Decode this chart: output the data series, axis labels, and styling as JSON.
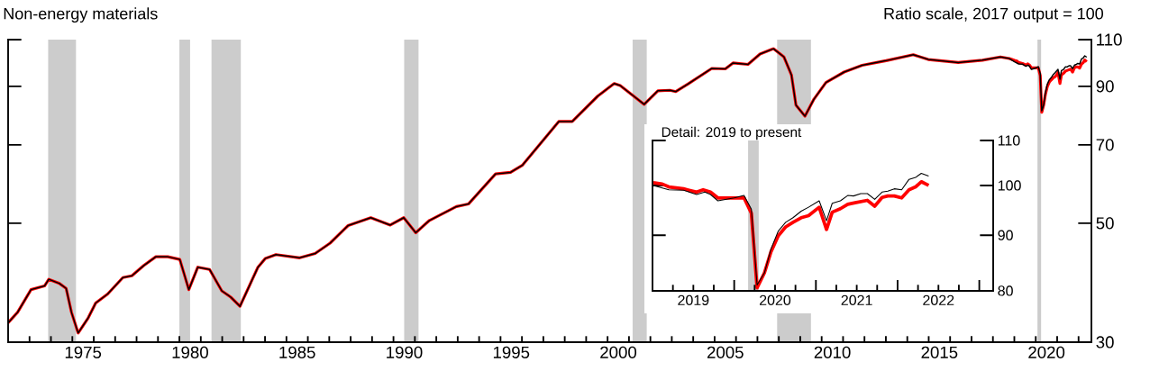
{
  "chart_data": [
    {
      "type": "line",
      "title": "Non-energy materials",
      "ylabel": "Ratio scale, 2017 output = 100",
      "xlim": [
        1972,
        2022.6
      ],
      "ylim": [
        30,
        110
      ],
      "log": "y",
      "yticks": [
        30,
        50,
        70,
        90,
        110
      ],
      "xticks": [
        {
          "value": 1975.5,
          "label": "1975"
        },
        {
          "value": 1980.5,
          "label": "1980"
        },
        {
          "value": 1985.5,
          "label": "1985"
        },
        {
          "value": 1990.5,
          "label": "1990"
        },
        {
          "value": 1995.5,
          "label": "1995"
        },
        {
          "value": 2000.5,
          "label": "2000"
        },
        {
          "value": 2005.5,
          "label": "2005"
        },
        {
          "value": 2010.5,
          "label": "2010"
        },
        {
          "value": 2015.5,
          "label": "2015"
        },
        {
          "value": 2020.5,
          "label": "2020"
        },
        {
          "value": 1973,
          "label": null
        },
        {
          "value": 1974,
          "label": null
        },
        {
          "value": 1975,
          "label": null
        },
        {
          "value": 1976,
          "label": null
        },
        {
          "value": 1977,
          "label": null
        },
        {
          "value": 1978,
          "label": null
        },
        {
          "value": 1979,
          "label": null
        },
        {
          "value": 1980,
          "label": null
        },
        {
          "value": 1981,
          "label": null
        },
        {
          "value": 1982,
          "label": null
        },
        {
          "value": 1983,
          "label": null
        },
        {
          "value": 1984,
          "label": null
        },
        {
          "value": 1985,
          "label": null
        },
        {
          "value": 1986,
          "label": null
        },
        {
          "value": 1987,
          "label": null
        },
        {
          "value": 1988,
          "label": null
        },
        {
          "value": 1989,
          "label": null
        },
        {
          "value": 1990,
          "label": null
        },
        {
          "value": 1991,
          "label": null
        },
        {
          "value": 1992,
          "label": null
        },
        {
          "value": 1993,
          "label": null
        },
        {
          "value": 1994,
          "label": null
        },
        {
          "value": 1995,
          "label": null
        },
        {
          "value": 1996,
          "label": null
        },
        {
          "value": 1997,
          "label": null
        },
        {
          "value": 1998,
          "label": null
        },
        {
          "value": 1999,
          "label": null
        },
        {
          "value": 2000,
          "label": null
        },
        {
          "value": 2001,
          "label": null
        },
        {
          "value": 2002,
          "label": null
        },
        {
          "value": 2003,
          "label": null
        },
        {
          "value": 2004,
          "label": null
        },
        {
          "value": 2005,
          "label": null
        },
        {
          "value": 2006,
          "label": null
        },
        {
          "value": 2007,
          "label": null
        },
        {
          "value": 2008,
          "label": null
        },
        {
          "value": 2009,
          "label": null
        },
        {
          "value": 2010,
          "label": null
        },
        {
          "value": 2011,
          "label": null
        },
        {
          "value": 2012,
          "label": null
        },
        {
          "value": 2013,
          "label": null
        },
        {
          "value": 2014,
          "label": null
        },
        {
          "value": 2015,
          "label": null
        },
        {
          "value": 2016,
          "label": null
        },
        {
          "value": 2017,
          "label": null
        },
        {
          "value": 2018,
          "label": null
        },
        {
          "value": 2019,
          "label": null
        },
        {
          "value": 2020,
          "label": null
        },
        {
          "value": 2021,
          "label": null
        },
        {
          "value": 2022,
          "label": null
        }
      ],
      "bands": [
        {
          "axis": "x",
          "from": 1973.87,
          "to": 1975.17,
          "color": "#cccccc"
        },
        {
          "axis": "x",
          "from": 1980.0,
          "to": 1980.5,
          "color": "#cccccc"
        },
        {
          "axis": "x",
          "from": 1981.5,
          "to": 1982.87,
          "color": "#cccccc"
        },
        {
          "axis": "x",
          "from": 1990.5,
          "to": 1991.17,
          "color": "#cccccc"
        },
        {
          "axis": "x",
          "from": 2001.17,
          "to": 2001.83,
          "color": "#cccccc"
        },
        {
          "axis": "x",
          "from": 2007.92,
          "to": 2009.5,
          "color": "#cccccc"
        },
        {
          "axis": "x",
          "from": 2020.08,
          "to": 2020.25,
          "color": "#cccccc"
        }
      ],
      "series": [
        {
          "color": "#ff0000",
          "x": [
            1972.0,
            1972.44,
            1973.07,
            1973.7,
            1973.9,
            1974.4,
            1974.71,
            1974.96,
            1975.27,
            1975.74,
            1976.09,
            1976.65,
            1977.36,
            1977.78,
            1978.34,
            1978.9,
            1979.46,
            1980.02,
            1980.44,
            1980.86,
            1981.41,
            1981.98,
            1982.4,
            1982.83,
            1983.67,
            1984.02,
            1984.51,
            1985.62,
            1986.34,
            1987.04,
            1987.88,
            1988.94,
            1989.85,
            1990.48,
            1991.04,
            1991.68,
            1992.94,
            1993.5,
            1994.77,
            1995.47,
            1996.03,
            1997.72,
            1998.35,
            1999.54,
            2000.31,
            2000.59,
            2001.22,
            2001.71,
            2002.35,
            2002.91,
            2003.19,
            2003.75,
            2004.87,
            2005.5,
            2005.86,
            2006.56,
            2007.12,
            2007.75,
            2008.24,
            2008.59,
            2008.8,
            2009.22,
            2009.64,
            2010.2,
            2011.05,
            2011.89,
            2013.01,
            2014.28,
            2014.98,
            2016.38,
            2017.51,
            2018.35,
            2018.77,
            2019.01,
            2019.12,
            2019.2,
            2019.38,
            2019.54,
            2019.62,
            2019.71,
            2019.8,
            2020.0,
            2020.12,
            2020.21,
            2020.28,
            2020.37,
            2020.45,
            2020.54,
            2020.63,
            2020.72,
            2020.82,
            2020.91,
            2021.04,
            2021.13,
            2021.2,
            2021.3,
            2021.39,
            2021.48,
            2021.63,
            2021.72,
            2021.81,
            2021.88,
            2021.96,
            2022.05,
            2022.14,
            2022.22,
            2022.29,
            2022.38
          ],
          "values": [
            32.6,
            34.1,
            37.6,
            38.2,
            39.3,
            38.6,
            37.8,
            34.1,
            31.2,
            33.3,
            35.5,
            36.9,
            39.6,
            39.9,
            41.7,
            43.3,
            43.3,
            42.8,
            37.6,
            41.4,
            41.0,
            37.4,
            36.4,
            35.0,
            41.4,
            43.0,
            43.7,
            43.1,
            43.9,
            45.9,
            49.5,
            51.2,
            49.6,
            51.2,
            48.0,
            50.6,
            53.7,
            54.3,
            61.8,
            62.2,
            64.2,
            77.4,
            77.4,
            86.3,
            91.1,
            90.3,
            86.3,
            83.3,
            88.3,
            88.5,
            88.0,
            90.9,
            97.2,
            97.0,
            99.5,
            98.9,
            103.4,
            105.8,
            102.1,
            94.5,
            83.0,
            79.2,
            85.2,
            91.5,
            95.7,
            98.5,
            100.5,
            103.1,
            101.0,
            99.7,
            100.7,
            102.1,
            101.4,
            100.6,
            100.3,
            99.7,
            99.3,
            98.6,
            99.1,
            98.6,
            97.4,
            97.4,
            97.4,
            94.3,
            80.5,
            83.1,
            86.9,
            89.9,
            91.6,
            92.5,
            93.4,
            93.8,
            95.5,
            91.1,
            94.5,
            95.2,
            96.1,
            96.4,
            96.9,
            95.7,
            97.5,
            97.8,
            97.8,
            97.4,
            99.1,
            99.7,
            100.8,
            100.0
          ]
        },
        {
          "color": "#000000",
          "x": [
            1972.0,
            1972.44,
            1973.07,
            1973.7,
            1973.9,
            1974.4,
            1974.71,
            1974.96,
            1975.27,
            1975.74,
            1976.09,
            1976.65,
            1977.36,
            1977.78,
            1978.34,
            1978.9,
            1979.46,
            1980.02,
            1980.44,
            1980.86,
            1981.41,
            1981.98,
            1982.4,
            1982.83,
            1983.67,
            1984.02,
            1984.51,
            1985.62,
            1986.34,
            1987.04,
            1987.88,
            1988.94,
            1989.85,
            1990.48,
            1991.04,
            1991.68,
            1992.94,
            1993.5,
            1994.77,
            1995.47,
            1996.03,
            1997.72,
            1998.35,
            1999.54,
            2000.31,
            2000.59,
            2001.22,
            2001.71,
            2002.35,
            2002.91,
            2003.19,
            2003.75,
            2004.87,
            2005.5,
            2005.86,
            2006.56,
            2007.12,
            2007.75,
            2008.24,
            2008.59,
            2008.8,
            2009.22,
            2009.64,
            2010.2,
            2011.05,
            2011.89,
            2013.01,
            2014.28,
            2014.98,
            2016.38,
            2017.51,
            2018.35,
            2018.77,
            2019.01,
            2019.2,
            2019.38,
            2019.54,
            2019.64,
            2019.71,
            2019.8,
            2020.0,
            2020.12,
            2020.21,
            2020.28,
            2020.37,
            2020.45,
            2020.54,
            2020.63,
            2020.72,
            2020.82,
            2020.91,
            2021.04,
            2021.13,
            2021.2,
            2021.3,
            2021.39,
            2021.46,
            2021.55,
            2021.63,
            2021.72,
            2021.81,
            2021.88,
            2021.96,
            2022.05,
            2022.14,
            2022.22,
            2022.29,
            2022.38
          ],
          "values": [
            32.6,
            34.1,
            37.6,
            38.2,
            39.3,
            38.6,
            37.8,
            34.1,
            31.2,
            33.3,
            35.5,
            36.9,
            39.6,
            39.9,
            41.7,
            43.3,
            43.3,
            42.8,
            37.6,
            41.4,
            41.0,
            37.4,
            36.4,
            35.0,
            41.4,
            43.0,
            43.7,
            43.1,
            43.9,
            45.9,
            49.5,
            51.2,
            49.6,
            51.2,
            48.0,
            50.6,
            53.7,
            54.3,
            61.8,
            62.2,
            64.2,
            77.4,
            77.4,
            86.3,
            91.1,
            90.3,
            86.3,
            83.3,
            88.3,
            88.5,
            88.0,
            90.9,
            97.2,
            97.0,
            99.5,
            98.9,
            103.4,
            105.8,
            102.1,
            94.5,
            83.0,
            79.2,
            85.2,
            91.5,
            95.7,
            98.5,
            100.5,
            103.1,
            101.0,
            99.7,
            100.7,
            102.1,
            101.4,
            100.0,
            99.1,
            99.0,
            98.1,
            98.6,
            98.1,
            96.8,
            97.4,
            97.9,
            95.1,
            81.0,
            83.1,
            87.4,
            90.8,
            92.5,
            93.4,
            94.7,
            95.5,
            96.8,
            92.8,
            96.3,
            96.8,
            97.9,
            97.8,
            98.3,
            98.3,
            97.1,
            98.6,
            98.8,
            99.3,
            99.1,
            101.3,
            101.7,
            102.6,
            102.0
          ]
        }
      ]
    },
    {
      "type": "line",
      "title": "Detail: 2019 to present",
      "xlim": [
        2019,
        2023.17
      ],
      "ylim": [
        80,
        110
      ],
      "log": "y",
      "yticks": [
        80,
        90,
        100,
        110
      ],
      "xticks": [
        {
          "value": 2019.5,
          "label": "2019"
        },
        {
          "value": 2020.5,
          "label": "2020"
        },
        {
          "value": 2021.5,
          "label": "2021"
        },
        {
          "value": 2022.5,
          "label": "2022"
        },
        {
          "value": 2019.25,
          "label": null
        },
        {
          "value": 2019.5,
          "label": null
        },
        {
          "value": 2019.75,
          "label": null
        },
        {
          "value": 2020,
          "label": null
        },
        {
          "value": 2020.25,
          "label": null
        },
        {
          "value": 2020.5,
          "label": null
        },
        {
          "value": 2020.75,
          "label": null
        },
        {
          "value": 2021,
          "label": null
        },
        {
          "value": 2021.25,
          "label": null
        },
        {
          "value": 2021.5,
          "label": null
        },
        {
          "value": 2021.75,
          "label": null
        },
        {
          "value": 2022,
          "label": null
        },
        {
          "value": 2022.25,
          "label": null
        },
        {
          "value": 2022.5,
          "label": null
        },
        {
          "value": 2022.75,
          "label": null
        },
        {
          "value": 2023,
          "label": null
        }
      ],
      "bands": [
        {
          "axis": "x",
          "from": 2020.17,
          "to": 2020.3,
          "color": "#cccccc"
        }
      ],
      "series": [
        {
          "color": "#ff0000",
          "x": [
            2019.01,
            2019.12,
            2019.2,
            2019.38,
            2019.54,
            2019.62,
            2019.71,
            2019.8,
            2020.0,
            2020.12,
            2020.21,
            2020.28,
            2020.37,
            2020.45,
            2020.54,
            2020.63,
            2020.72,
            2020.82,
            2020.91,
            2021.04,
            2021.13,
            2021.2,
            2021.3,
            2021.39,
            2021.48,
            2021.63,
            2021.72,
            2021.81,
            2021.88,
            2021.96,
            2022.05,
            2022.14,
            2022.22,
            2022.29,
            2022.38
          ],
          "values": [
            100.6,
            100.3,
            99.7,
            99.3,
            98.6,
            99.1,
            98.6,
            97.4,
            97.4,
            97.4,
            94.3,
            80.5,
            83.1,
            86.9,
            89.9,
            91.6,
            92.5,
            93.4,
            93.8,
            95.5,
            91.1,
            94.5,
            95.2,
            96.1,
            96.4,
            96.9,
            95.7,
            97.5,
            97.8,
            97.8,
            97.4,
            99.1,
            99.7,
            100.8,
            100.0
          ]
        },
        {
          "color": "#000000",
          "x": [
            2019.01,
            2019.2,
            2019.38,
            2019.54,
            2019.64,
            2019.71,
            2019.8,
            2020.0,
            2020.12,
            2020.21,
            2020.28,
            2020.37,
            2020.45,
            2020.54,
            2020.63,
            2020.72,
            2020.82,
            2020.91,
            2021.04,
            2021.13,
            2021.2,
            2021.3,
            2021.39,
            2021.46,
            2021.55,
            2021.63,
            2021.72,
            2021.81,
            2021.88,
            2021.96,
            2022.05,
            2022.14,
            2022.22,
            2022.29,
            2022.38
          ],
          "values": [
            100.0,
            99.1,
            99.0,
            98.1,
            98.6,
            98.1,
            96.8,
            97.4,
            97.9,
            95.1,
            81.0,
            83.1,
            87.4,
            90.8,
            92.5,
            93.4,
            94.7,
            95.5,
            96.8,
            92.8,
            96.3,
            96.8,
            97.9,
            97.8,
            98.3,
            98.3,
            97.1,
            98.6,
            98.8,
            99.3,
            99.1,
            101.3,
            101.7,
            102.6,
            102.0
          ]
        }
      ]
    }
  ]
}
